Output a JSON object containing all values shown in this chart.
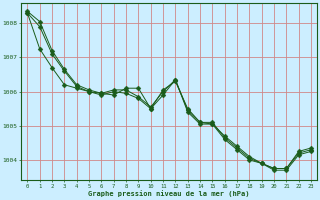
{
  "title": "Graphe pression niveau de la mer (hPa)",
  "background_color": "#cceeff",
  "grid_color": "#c8a0a0",
  "line_color": "#1a5c1a",
  "xlim": [
    -0.5,
    23.5
  ],
  "ylim": [
    1003.4,
    1008.6
  ],
  "yticks": [
    1004,
    1005,
    1006,
    1007,
    1008
  ],
  "xticks": [
    0,
    1,
    2,
    3,
    4,
    5,
    6,
    7,
    8,
    9,
    10,
    11,
    12,
    13,
    14,
    15,
    16,
    17,
    18,
    19,
    20,
    21,
    22,
    23
  ],
  "line1": [
    1008.35,
    1008.05,
    1007.2,
    1006.65,
    1006.2,
    1006.05,
    1005.95,
    1006.05,
    1006.05,
    1005.85,
    1005.55,
    1006.0,
    1006.35,
    1005.45,
    1005.1,
    1005.1,
    1004.65,
    1004.35,
    1004.05,
    1003.9,
    1003.75,
    1003.75,
    1004.2,
    1004.3
  ],
  "line2": [
    1008.3,
    1007.9,
    1007.1,
    1006.6,
    1006.15,
    1006.0,
    1005.9,
    1006.0,
    1005.95,
    1005.8,
    1005.5,
    1005.9,
    1006.35,
    1005.4,
    1005.05,
    1005.05,
    1004.6,
    1004.3,
    1004.0,
    1003.9,
    1003.7,
    1003.7,
    1004.15,
    1004.25
  ],
  "line3": [
    1008.3,
    1007.25,
    1006.7,
    1006.2,
    1006.1,
    1006.0,
    1005.95,
    1005.9,
    1006.1,
    1006.1,
    1005.5,
    1006.05,
    1006.3,
    1005.5,
    1005.1,
    1005.05,
    1004.7,
    1004.4,
    1004.1,
    1003.9,
    1003.75,
    1003.75,
    1004.25,
    1004.35
  ]
}
